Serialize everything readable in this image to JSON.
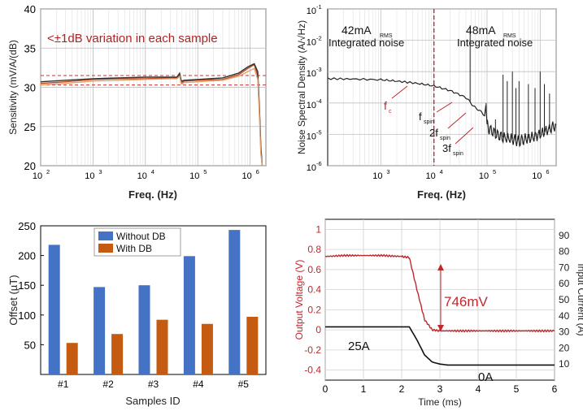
{
  "chart_data": [
    {
      "type": "line",
      "xlabel": "Freq. (Hz)",
      "ylabel": "Sensitivity (mV/A/(dB)",
      "x_scale": "log",
      "xlim": [
        100,
        2000000
      ],
      "ylim": [
        20,
        40
      ],
      "xticks": [
        100,
        1000,
        10000,
        100000,
        1000000
      ],
      "xtick_labels": [
        "10",
        "10",
        "10",
        "10",
        "10"
      ],
      "xtick_exps": [
        "2",
        "3",
        "4",
        "5",
        "6"
      ],
      "yticks": [
        20,
        25,
        30,
        35,
        40
      ],
      "ytick_labels": [
        "20",
        "25",
        "30",
        "35",
        "40"
      ],
      "grid": true,
      "annotation": "<±1dB variation in each sample",
      "ref_lines": [
        31.5,
        30.3
      ],
      "ref_color": "#cc3333",
      "series": [
        {
          "color": "#c04a1a",
          "x": [
            100,
            300,
            1000,
            3000,
            10000,
            30000,
            40000,
            45000,
            48000,
            50000,
            55000,
            100000,
            300000,
            600000,
            900000,
            1200000,
            1400000,
            1500000,
            1600000,
            1700000
          ],
          "y": [
            30.5,
            30.7,
            31.0,
            31.1,
            31.1,
            31.2,
            31.2,
            31.6,
            30.7,
            30.6,
            30.8,
            30.9,
            31.0,
            31.6,
            32.4,
            32.9,
            31.5,
            27.0,
            22.0,
            19.5
          ]
        },
        {
          "color": "#333333",
          "x": [
            100,
            300,
            1000,
            3000,
            10000,
            30000,
            40000,
            45000,
            48000,
            50000,
            55000,
            100000,
            300000,
            600000,
            900000,
            1200000,
            1400000,
            1500000,
            1600000,
            1700000
          ],
          "y": [
            30.7,
            30.9,
            31.1,
            31.2,
            31.3,
            31.3,
            31.3,
            31.8,
            30.9,
            30.8,
            30.9,
            31.0,
            31.2,
            31.8,
            32.6,
            33.0,
            32.0,
            27.5,
            22.5,
            19.5
          ]
        },
        {
          "color": "#e0a070",
          "x": [
            100,
            300,
            1000,
            3000,
            10000,
            30000,
            40000,
            45000,
            48000,
            50000,
            55000,
            100000,
            300000,
            600000,
            900000,
            1200000,
            1400000,
            1500000,
            1600000,
            1700000
          ],
          "y": [
            30.3,
            30.5,
            30.8,
            30.9,
            31.0,
            31.1,
            31.1,
            31.4,
            30.5,
            30.4,
            30.6,
            30.7,
            30.9,
            31.4,
            32.0,
            32.4,
            31.0,
            26.5,
            21.5,
            19.5
          ]
        }
      ]
    },
    {
      "type": "line",
      "xlabel": "Freq. (Hz)",
      "ylabel": "Noise Spectral Density (A/√Hz)",
      "x_scale": "log",
      "y_scale": "log",
      "xlim": [
        100,
        2000000
      ],
      "ylim": [
        1e-06,
        0.1
      ],
      "xticks": [
        1000,
        10000,
        100000,
        1000000
      ],
      "xtick_labels": [
        "10",
        "10",
        "10",
        "10"
      ],
      "xtick_exps": [
        "3",
        "4",
        "5",
        "6"
      ],
      "yticks": [
        1e-06,
        1e-05,
        0.0001,
        0.001,
        0.01,
        0.1
      ],
      "ytick_labels": [
        "10",
        "10",
        "10",
        "10",
        "10",
        "10"
      ],
      "ytick_exps": [
        "-6",
        "-5",
        "-4",
        "-3",
        "-2",
        "-1"
      ],
      "grid": true,
      "fc": 10000,
      "labels": {
        "left_val": "42mA",
        "left_sub": "RMS",
        "left_text": "Integrated noise",
        "right_val": "48mA",
        "right_sub": "RMS",
        "right_text": "Integrated noise",
        "fc": "f",
        "fc_sub": "c",
        "fspin": "f",
        "fspin_sub": "spin",
        "f2": "2f",
        "f2_sub": "spin",
        "f3": "3f",
        "f3_sub": "spin"
      },
      "series": [
        {
          "color": "#222222",
          "x": [
            100,
            300,
            1000,
            2000,
            5000,
            10000,
            20000,
            40000,
            45000,
            50000,
            55000,
            80000,
            90000,
            95000,
            100000,
            110000,
            150000,
            200000,
            300000,
            400000,
            500000,
            700000,
            1000000,
            1500000,
            2000000
          ],
          "y": [
            0.0006,
            0.00058,
            0.00055,
            0.0005,
            0.00042,
            0.00035,
            0.00025,
            0.00015,
            0.00012,
            0.0001,
            8e-05,
            5e-05,
            4e-05,
            8e-05,
            2e-05,
            1.5e-05,
            1e-05,
            8e-06,
            7e-06,
            6e-06,
            7e-06,
            8e-06,
            1e-05,
            1.5e-05,
            2e-05
          ]
        }
      ],
      "spikes": [
        {
          "x": 48000,
          "y": 0.03
        },
        {
          "x": 96000,
          "y": 0.0001
        },
        {
          "x": 144000,
          "y": 3e-05
        },
        {
          "x": 200000,
          "y": 0.0008
        },
        {
          "x": 240000,
          "y": 0.0005
        },
        {
          "x": 300000,
          "y": 0.001
        },
        {
          "x": 350000,
          "y": 0.0003
        },
        {
          "x": 400000,
          "y": 0.0005
        },
        {
          "x": 600000,
          "y": 0.0004
        },
        {
          "x": 800000,
          "y": 0.0003
        },
        {
          "x": 1000000,
          "y": 0.001
        },
        {
          "x": 1200000,
          "y": 0.0004
        },
        {
          "x": 1500000,
          "y": 0.0002
        }
      ]
    },
    {
      "type": "bar",
      "xlabel": "Samples ID",
      "ylabel": "Offset (µT)",
      "ylim": [
        0,
        250
      ],
      "yticks": [
        0,
        50,
        100,
        150,
        200,
        250
      ],
      "ytick_labels": [
        "",
        "50",
        "100",
        "150",
        "200",
        "250"
      ],
      "categories": [
        "#1",
        "#2",
        "#3",
        "#4",
        "#5"
      ],
      "legend_position": "top-center",
      "series": [
        {
          "name": "Without DB",
          "color": "#4472c4",
          "values": [
            218,
            147,
            150,
            199,
            243
          ]
        },
        {
          "name": "With DB",
          "color": "#c55a11",
          "values": [
            53,
            68,
            92,
            85,
            97
          ]
        }
      ]
    },
    {
      "type": "line",
      "xlabel": "Time (ms)",
      "ylabel": "Output Voltage (V)",
      "ylabel_right": "Input Current (A)",
      "xlim": [
        0,
        6
      ],
      "ylim": [
        -0.5,
        1.1
      ],
      "ylim_right": [
        0,
        100
      ],
      "xticks": [
        0,
        1,
        2,
        3,
        4,
        5,
        6
      ],
      "xtick_labels": [
        "0",
        "1",
        "2",
        "3",
        "4",
        "5",
        "6"
      ],
      "yticks": [
        -0.4,
        -0.2,
        0,
        0.2,
        0.4,
        0.6,
        0.8,
        1.0
      ],
      "ytick_labels": [
        "-0.4",
        "-0.2",
        "0",
        "0.2",
        "0.4",
        "0.6",
        "0.8",
        "1"
      ],
      "yticks_right": [
        10,
        20,
        30,
        40,
        50,
        60,
        70,
        80,
        90
      ],
      "ytick_labels_right": [
        "10",
        "20",
        "30",
        "40",
        "50",
        "60",
        "70",
        "80",
        "90"
      ],
      "grid": true,
      "annotations": {
        "step": "746mV",
        "i_high": "25A",
        "i_low": "0A"
      },
      "series": [
        {
          "color": "#c0282d",
          "axis": "left",
          "x": [
            0,
            0.5,
            1.0,
            1.5,
            2.0,
            2.2,
            2.4,
            2.6,
            2.8,
            3.0,
            3.5,
            4.0,
            4.5,
            5.0,
            5.5,
            6.0
          ],
          "y": [
            0.73,
            0.74,
            0.74,
            0.74,
            0.73,
            0.72,
            0.4,
            0.1,
            0.0,
            -0.01,
            -0.01,
            -0.01,
            -0.01,
            -0.01,
            -0.01,
            -0.01
          ]
        },
        {
          "color": "#111111",
          "axis": "left",
          "x": [
            0,
            2.2,
            2.4,
            2.6,
            2.8,
            3.0,
            3.2,
            6.0
          ],
          "y": [
            0.03,
            0.03,
            -0.1,
            -0.25,
            -0.32,
            -0.34,
            -0.35,
            -0.35
          ]
        }
      ]
    }
  ]
}
